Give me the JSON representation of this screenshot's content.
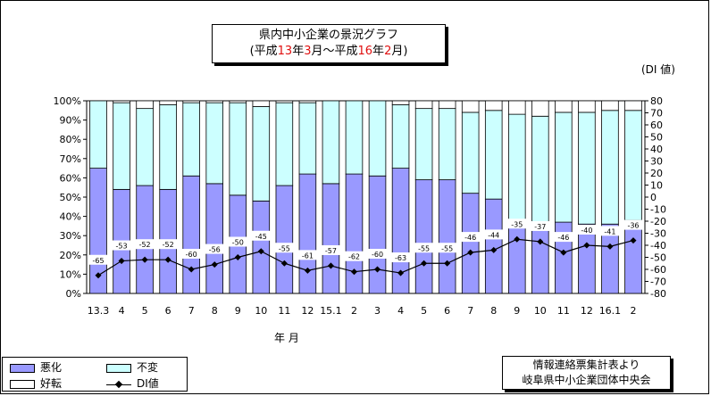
{
  "title": {
    "line1": "県内中小企業の景況グラフ",
    "line2_parts": [
      "(平成",
      "13",
      "年",
      "3",
      "月〜平成",
      "16",
      "年",
      "2",
      "月)"
    ]
  },
  "y_right_unit": "(DI 値)",
  "x_axis_label": "年  月",
  "legend": {
    "bad": "悪化",
    "same": "不変",
    "good": "好転",
    "di": "DI値"
  },
  "source": {
    "line1": "情報連絡票集計表より",
    "line2": "岐阜県中小企業団体中央会"
  },
  "colors": {
    "bad": "#9999ff",
    "same": "#ccffff",
    "good": "#ffffff",
    "di_line": "#000000",
    "title_accent": "#e01010"
  },
  "chart_data": {
    "type": "bar",
    "stacked": true,
    "categories": [
      "13.3",
      "4",
      "5",
      "6",
      "7",
      "8",
      "9",
      "10",
      "11",
      "12",
      "15.1",
      "2",
      "3",
      "4",
      "5",
      "6",
      "7",
      "8",
      "9",
      "10",
      "11",
      "12",
      "16.1",
      "2"
    ],
    "series": [
      {
        "name": "悪化",
        "values": [
          65,
          54,
          56,
          54,
          61,
          57,
          51,
          48,
          56,
          62,
          57,
          62,
          61,
          65,
          59,
          59,
          52,
          49,
          38,
          35,
          37,
          36,
          36,
          38
        ]
      },
      {
        "name": "不変",
        "values": [
          35,
          45,
          40,
          44,
          38,
          42,
          48,
          49,
          43,
          37,
          43,
          38,
          39,
          33,
          37,
          37,
          42,
          46,
          55,
          57,
          57,
          58,
          59,
          57
        ]
      },
      {
        "name": "好転",
        "values": [
          0,
          1,
          4,
          2,
          1,
          1,
          1,
          3,
          1,
          1,
          0,
          0,
          0,
          2,
          4,
          4,
          6,
          5,
          7,
          8,
          6,
          6,
          5,
          5
        ]
      }
    ],
    "di": {
      "name": "DI値",
      "values": [
        -65,
        -53,
        -52,
        -52,
        -60,
        -56,
        -50,
        -45,
        -55,
        -61,
        -57,
        -62,
        -60,
        -63,
        -55,
        -55,
        -46,
        -44,
        -35,
        -37,
        -46,
        -40,
        -41,
        -36
      ],
      "ylim": [
        -80,
        80
      ],
      "yticks": [
        80,
        70,
        60,
        50,
        40,
        30,
        20,
        10,
        0,
        -10,
        -20,
        -30,
        -40,
        -50,
        -60,
        -70,
        -80
      ]
    },
    "ylim": [
      0,
      100
    ],
    "yticks": [
      "0%",
      "10%",
      "20%",
      "30%",
      "40%",
      "50%",
      "60%",
      "70%",
      "80%",
      "90%",
      "100%"
    ],
    "grid": false,
    "legend_position": "bottom-left"
  }
}
